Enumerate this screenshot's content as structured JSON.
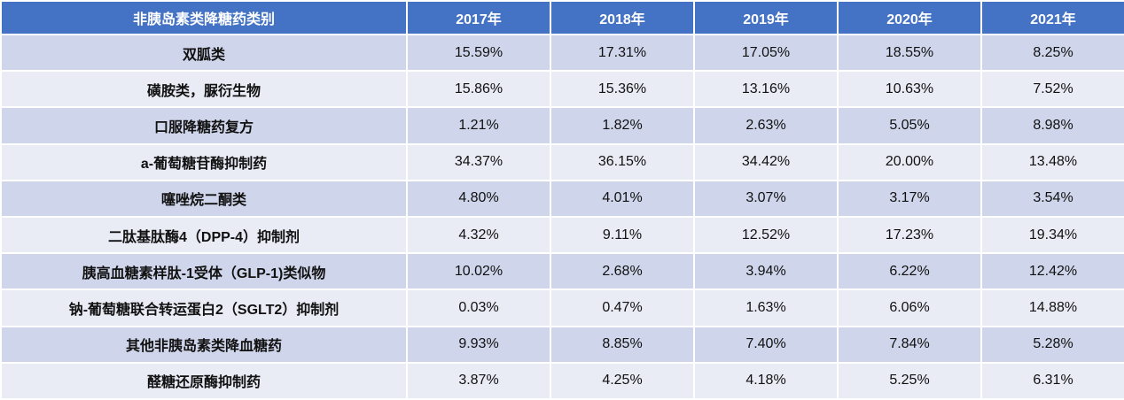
{
  "table": {
    "header": [
      "非胰岛素类降糖药类别",
      "2017年",
      "2018年",
      "2019年",
      "2020年",
      "2021年"
    ],
    "rows": [
      [
        "双胍类",
        "15.59%",
        "17.31%",
        "17.05%",
        "18.55%",
        "8.25%"
      ],
      [
        "磺胺类，脲衍生物",
        "15.86%",
        "15.36%",
        "13.16%",
        "10.63%",
        "7.52%"
      ],
      [
        "口服降糖药复方",
        "1.21%",
        "1.82%",
        "2.63%",
        "5.05%",
        "8.98%"
      ],
      [
        "a-葡萄糖苷酶抑制药",
        "34.37%",
        "36.15%",
        "34.42%",
        "20.00%",
        "13.48%"
      ],
      [
        "噻唑烷二酮类",
        "4.80%",
        "4.01%",
        "3.07%",
        "3.17%",
        "3.54%"
      ],
      [
        "二肽基肽酶4（DPP-4）抑制剂",
        "4.32%",
        "9.11%",
        "12.52%",
        "17.23%",
        "19.34%"
      ],
      [
        "胰高血糖素样肽-1受体（GLP-1)类似物",
        "10.02%",
        "2.68%",
        "3.94%",
        "6.22%",
        "12.42%"
      ],
      [
        "钠-葡萄糖联合转运蛋白2（SGLT2）抑制剂",
        "0.03%",
        "0.47%",
        "1.63%",
        "6.06%",
        "14.88%"
      ],
      [
        "其他非胰岛素类降血糖药",
        "9.93%",
        "8.85%",
        "7.40%",
        "7.84%",
        "5.28%"
      ],
      [
        "醛糖还原酶抑制药",
        "3.87%",
        "4.25%",
        "4.18%",
        "5.25%",
        "6.31%"
      ]
    ]
  }
}
